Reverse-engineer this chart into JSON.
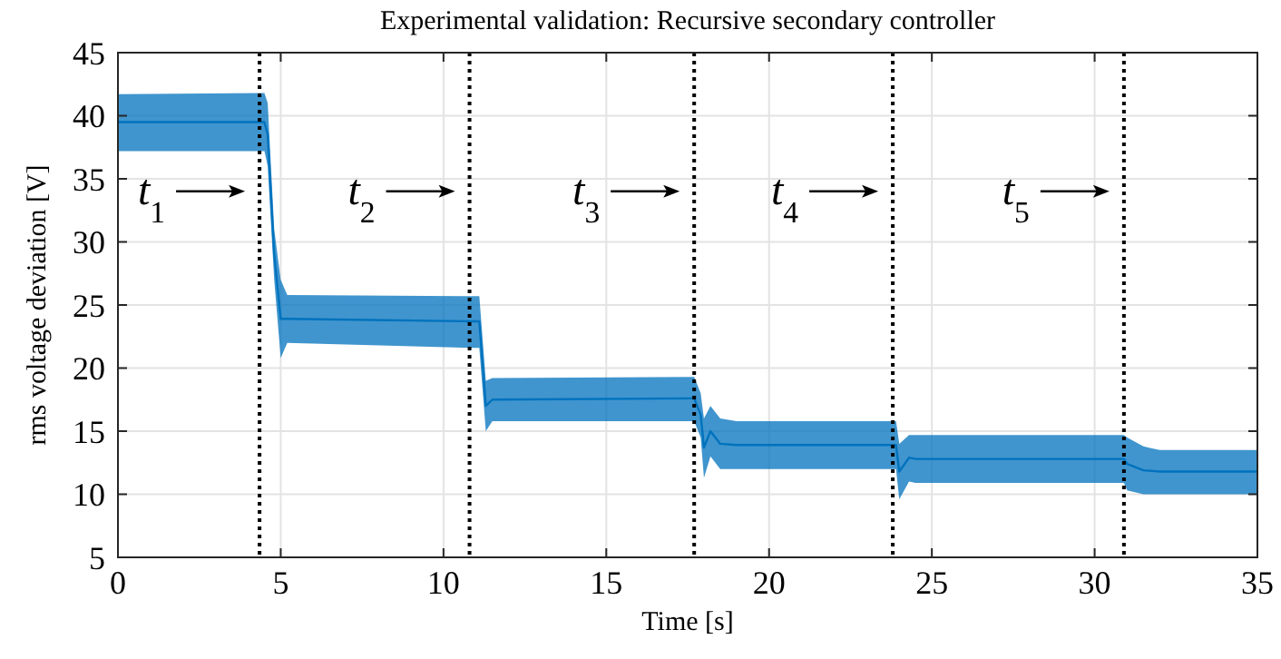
{
  "chart_data": {
    "type": "line",
    "title": "Experimental validation: Recursive secondary controller",
    "xlabel": "Time [s]",
    "ylabel": "rms voltage deviation [V]",
    "xlim": [
      0,
      35
    ],
    "xticks": [
      0,
      5,
      10,
      15,
      20,
      25,
      30,
      35
    ],
    "ylim": [
      5,
      45
    ],
    "yticks": [
      5,
      10,
      15,
      20,
      25,
      30,
      35,
      40,
      45
    ],
    "grid": true,
    "series": [
      {
        "color": "#0072bd",
        "x": [
          0,
          4.5,
          4.6,
          4.8,
          5.0,
          5.2,
          10.9,
          11.1,
          11.3,
          11.5,
          17.7,
          17.9,
          18.0,
          18.2,
          18.5,
          19,
          23.9,
          24.0,
          24.3,
          24.5,
          30.9,
          31.0,
          31.5,
          32,
          35
        ],
        "upper": [
          41.7,
          41.8,
          41,
          31,
          27,
          25.8,
          25.7,
          25.7,
          19,
          19.2,
          19.3,
          18,
          16,
          17,
          16,
          15.8,
          15.8,
          14,
          14.7,
          14.7,
          14.7,
          14.5,
          13.8,
          13.5,
          13.5
        ],
        "lower": [
          37.2,
          37.2,
          36,
          27,
          20.8,
          22,
          21.6,
          21.6,
          15,
          15.8,
          15.8,
          14.5,
          11.3,
          13,
          12,
          12,
          12,
          9.6,
          11,
          10.9,
          10.9,
          10.3,
          10,
          10,
          10
        ],
        "values": [
          39.5,
          39.5,
          38.5,
          29,
          23.9,
          23.9,
          23.7,
          23.7,
          17,
          17.5,
          17.6,
          16.3,
          13.7,
          15,
          14,
          13.9,
          13.9,
          11.8,
          12.9,
          12.8,
          12.8,
          12.4,
          11.9,
          11.8,
          11.8
        ]
      }
    ],
    "ref_lines": [
      {
        "axis": "x",
        "value": 4.35,
        "label": "t$_{1}$",
        "line_style": "dotted",
        "color": "#000000"
      },
      {
        "axis": "x",
        "value": 10.8,
        "label": "t$_{2}$",
        "line_style": "dotted",
        "color": "#000000"
      },
      {
        "axis": "x",
        "value": 17.7,
        "label": "t$_{3}$",
        "line_style": "dotted",
        "color": "#000000"
      },
      {
        "axis": "x",
        "value": 23.8,
        "label": "t$_{4}$",
        "line_style": "dotted",
        "color": "#000000"
      },
      {
        "axis": "x",
        "value": 30.9,
        "label": "t$_{5}$",
        "line_style": "dotted",
        "color": "#000000"
      }
    ]
  }
}
